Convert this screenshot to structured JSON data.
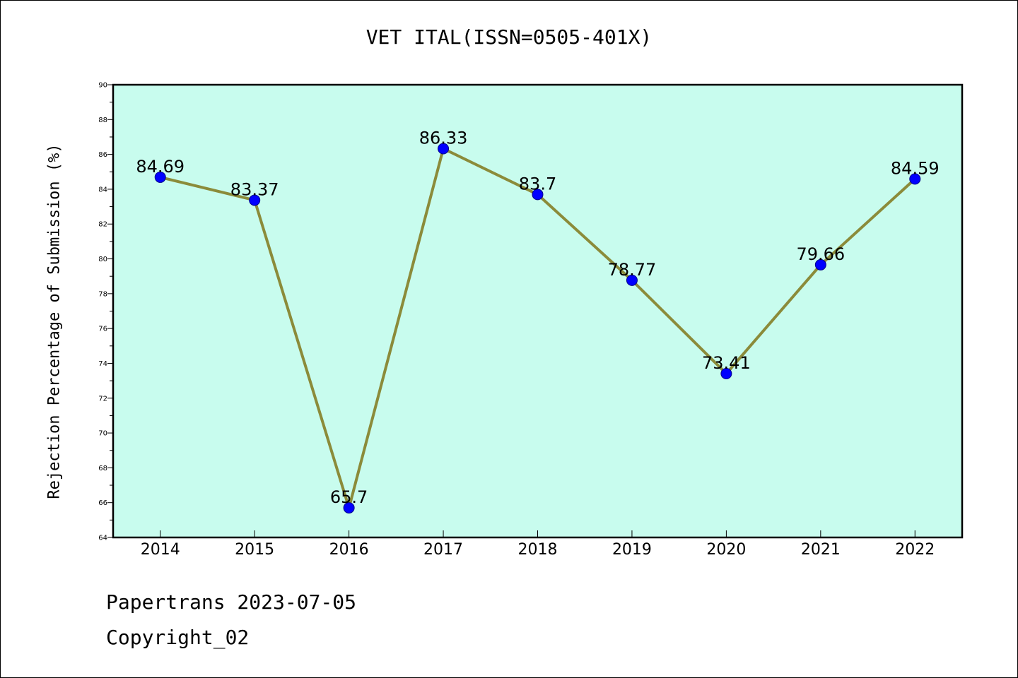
{
  "chart_data": {
    "type": "line",
    "title": "VET ITAL(ISSN=0505-401X)",
    "xlabel": "",
    "ylabel": "Rejection Percentage of Submission (%)",
    "categories": [
      "2014",
      "2015",
      "2016",
      "2017",
      "2018",
      "2019",
      "2020",
      "2021",
      "2022"
    ],
    "values": [
      84.69,
      83.37,
      65.7,
      86.33,
      83.7,
      78.77,
      73.41,
      79.66,
      84.59
    ],
    "data_labels": [
      "84.69",
      "83.37",
      "65.7",
      "86.33",
      "83.7",
      "78.77",
      "73.41",
      "79.66",
      "84.59"
    ],
    "ylim": [
      64,
      90
    ],
    "yticks": [
      "64",
      "66",
      "68",
      "70",
      "72",
      "74",
      "76",
      "78",
      "80",
      "82",
      "84",
      "86",
      "88",
      "90"
    ],
    "grid": false,
    "colors": {
      "plot_background": "#c8fcee",
      "line": "#8b8b3a",
      "marker": "#0000ff"
    }
  },
  "footer": {
    "date_text": "Papertrans 2023-07-05",
    "copyright_text": "Copyright_02"
  }
}
